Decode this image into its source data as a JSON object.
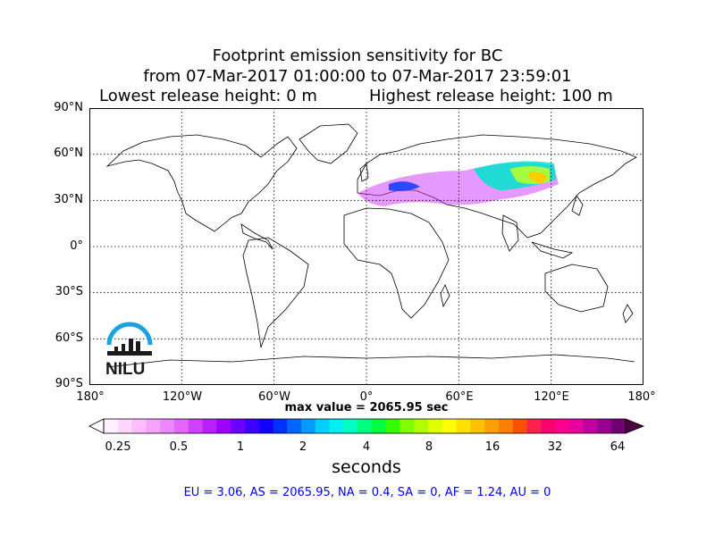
{
  "title": {
    "line1": "Footprint emission sensitivity for BC",
    "line2": "from 07-Mar-2017 01:00:00 to 07-Mar-2017 23:59:01",
    "lowest": "Lowest release height: 0 m",
    "highest": "Highest release height: 100 m"
  },
  "lat_labels": [
    "90°N",
    "60°N",
    "30°N",
    "0°",
    "30°S",
    "60°S",
    "90°S"
  ],
  "lon_labels": [
    "180°",
    "120°W",
    "60°W",
    "0°",
    "60°E",
    "120°E",
    "180°"
  ],
  "logo_text": "NILU",
  "max_value": "max value = 2065.95 sec",
  "colorbar": {
    "ticks": [
      "0.25",
      "0.5",
      "1",
      "2",
      "4",
      "8",
      "16",
      "32",
      "64"
    ],
    "unit": "seconds"
  },
  "stats": "EU = 3.06,  AS = 2065.95,  NA = 0.4,  SA = 0,  AF = 1.24,  AU = 0",
  "colors": {
    "logo": "#1aa3e0",
    "stats_text": "#0000ff"
  }
}
